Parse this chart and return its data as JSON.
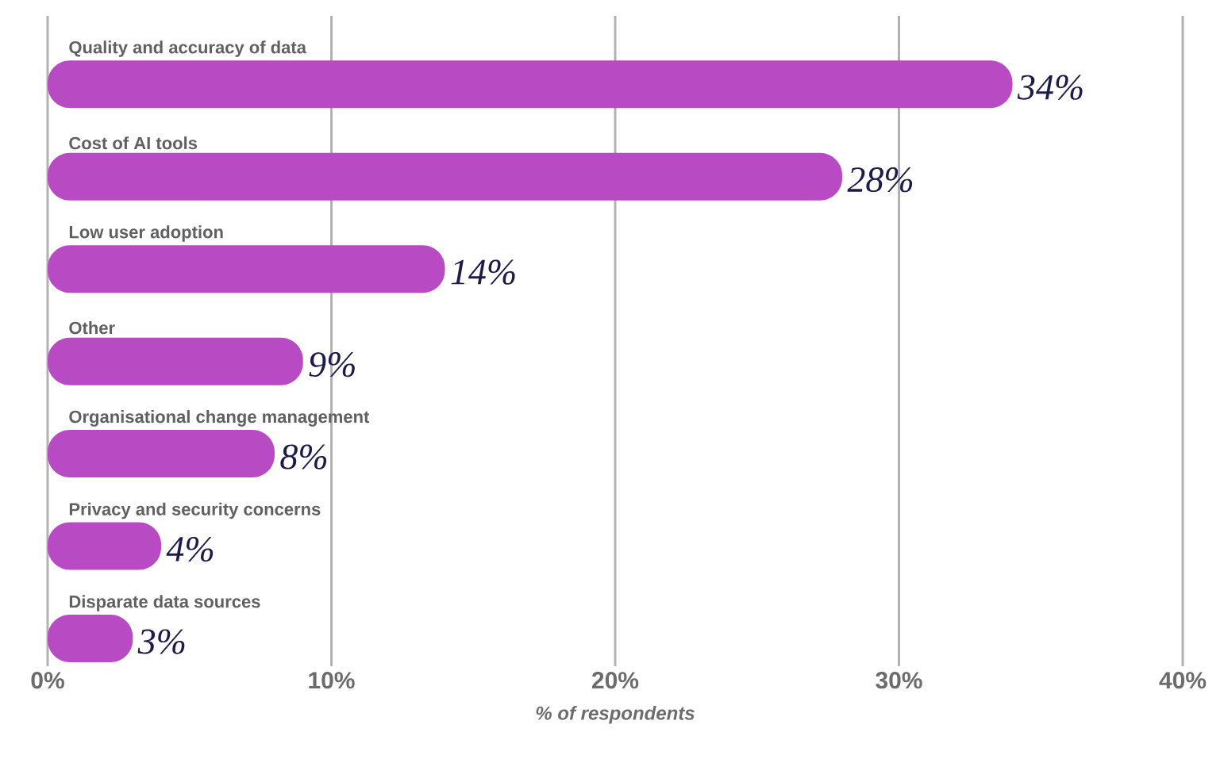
{
  "chart_data": {
    "type": "bar",
    "orientation": "horizontal",
    "xlabel": "% of respondents",
    "categories": [
      "Quality and accuracy of data",
      "Cost of AI tools",
      "Low user adoption",
      "Other",
      "Organisational change management",
      "Privacy and security concerns",
      "Disparate data sources"
    ],
    "values": [
      34,
      28,
      14,
      9,
      8,
      4,
      3
    ],
    "value_labels": [
      "34%",
      "28%",
      "14%",
      "9%",
      "8%",
      "4%",
      "3%"
    ],
    "color": "#b84bc4",
    "xlim": [
      0,
      40
    ],
    "xticks": [
      {
        "value": 0,
        "label": "0%"
      },
      {
        "value": 10,
        "label": "10%"
      },
      {
        "value": 20,
        "label": "20%"
      },
      {
        "value": 30,
        "label": "30%"
      },
      {
        "value": 40,
        "label": "40%"
      }
    ],
    "grid": "x"
  }
}
